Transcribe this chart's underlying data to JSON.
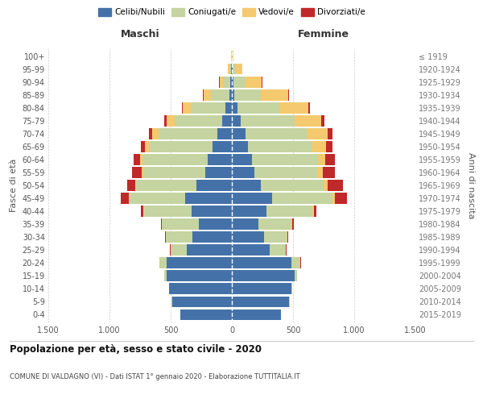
{
  "age_groups": [
    "0-4",
    "5-9",
    "10-14",
    "15-19",
    "20-24",
    "25-29",
    "30-34",
    "35-39",
    "40-44",
    "45-49",
    "50-54",
    "55-59",
    "60-64",
    "65-69",
    "70-74",
    "75-79",
    "80-84",
    "85-89",
    "90-94",
    "95-99",
    "100+"
  ],
  "birth_years": [
    "2015-2019",
    "2010-2014",
    "2005-2009",
    "2000-2004",
    "1995-1999",
    "1990-1994",
    "1985-1989",
    "1980-1984",
    "1975-1979",
    "1970-1974",
    "1965-1969",
    "1960-1964",
    "1955-1959",
    "1950-1954",
    "1945-1949",
    "1940-1944",
    "1935-1939",
    "1930-1934",
    "1925-1929",
    "1920-1924",
    "≤ 1919"
  ],
  "males": {
    "celibe": [
      420,
      490,
      510,
      530,
      530,
      370,
      320,
      270,
      330,
      380,
      290,
      220,
      200,
      160,
      120,
      80,
      50,
      20,
      10,
      5,
      2
    ],
    "coniugato": [
      2,
      2,
      5,
      20,
      60,
      130,
      220,
      300,
      390,
      460,
      490,
      500,
      530,
      520,
      480,
      390,
      280,
      150,
      60,
      15,
      2
    ],
    "vedovo": [
      0,
      0,
      0,
      0,
      0,
      1,
      1,
      2,
      3,
      5,
      8,
      15,
      20,
      30,
      50,
      60,
      70,
      60,
      30,
      10,
      1
    ],
    "divorziato": [
      0,
      0,
      0,
      0,
      2,
      5,
      5,
      10,
      20,
      60,
      65,
      80,
      55,
      35,
      30,
      20,
      10,
      5,
      3,
      2,
      0
    ]
  },
  "females": {
    "nubile": [
      400,
      470,
      490,
      510,
      490,
      310,
      260,
      220,
      280,
      330,
      240,
      185,
      165,
      130,
      110,
      70,
      45,
      20,
      12,
      5,
      2
    ],
    "coniugata": [
      2,
      2,
      5,
      25,
      70,
      130,
      190,
      270,
      380,
      490,
      510,
      510,
      540,
      530,
      510,
      440,
      340,
      220,
      100,
      30,
      2
    ],
    "vedova": [
      0,
      0,
      0,
      0,
      1,
      2,
      3,
      5,
      8,
      20,
      30,
      50,
      60,
      110,
      160,
      220,
      240,
      220,
      130,
      50,
      8
    ],
    "divorziata": [
      0,
      0,
      0,
      0,
      3,
      5,
      5,
      10,
      20,
      100,
      130,
      95,
      75,
      55,
      40,
      25,
      12,
      8,
      5,
      3,
      0
    ]
  },
  "color_celibe": "#4472a8",
  "color_coniugato": "#c5d4a0",
  "color_vedovo": "#f5c96e",
  "color_divorziato": "#c0282a",
  "title": "Popolazione per età, sesso e stato civile - 2020",
  "subtitle": "COMUNE DI VALDAGNO (VI) - Dati ISTAT 1° gennaio 2020 - Elaborazione TUTTITALIA.IT",
  "xlabel_left": "Maschi",
  "xlabel_right": "Femmine",
  "ylabel_left": "Fasce di età",
  "ylabel_right": "Anni di nascita",
  "xlim": 1500,
  "xticks": [
    -1500,
    -1000,
    -500,
    0,
    500,
    1000,
    1500
  ],
  "xticklabels": [
    "1.500",
    "1.000",
    "500",
    "0",
    "500",
    "1.000",
    "1.500"
  ],
  "background_color": "#ffffff",
  "grid_color": "#cccccc"
}
